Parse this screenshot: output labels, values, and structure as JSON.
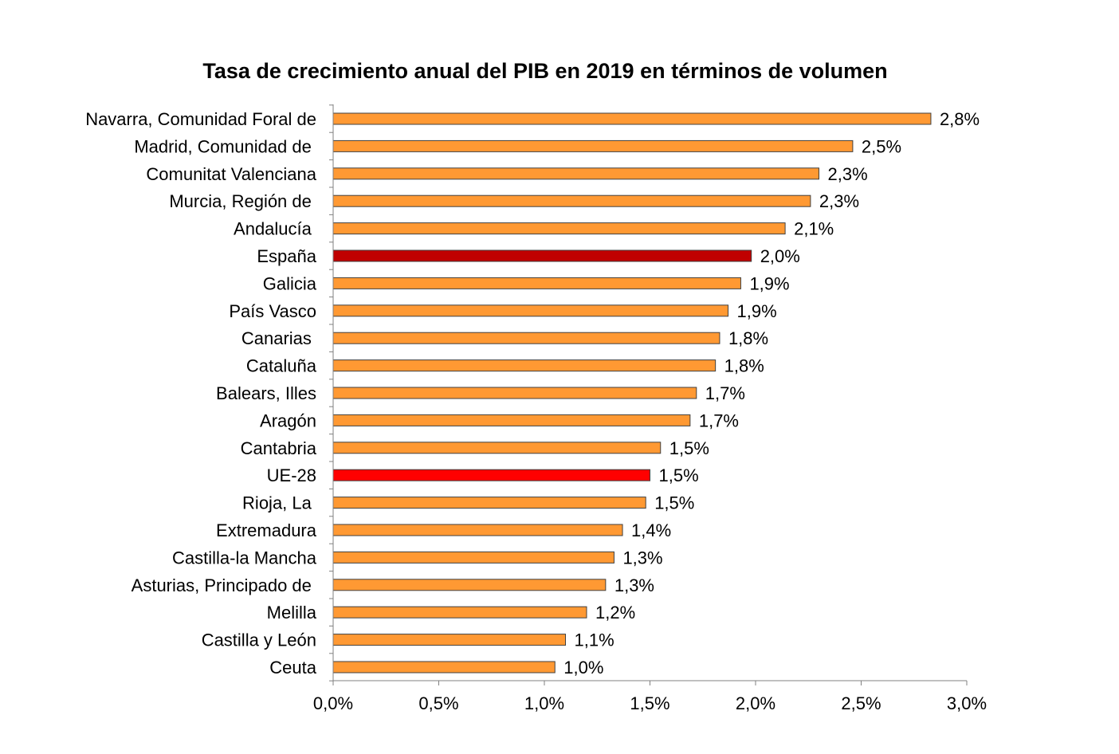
{
  "chart_data": {
    "type": "bar",
    "orientation": "horizontal",
    "title": "Tasa de crecimiento anual del PIB en 2019 en términos de volumen",
    "xlabel": "",
    "ylabel": "",
    "xlim": [
      0,
      3.0
    ],
    "x_ticks": [
      0,
      0.5,
      1.0,
      1.5,
      2.0,
      2.5,
      3.0
    ],
    "x_tick_labels": [
      "0,0%",
      "0,5%",
      "1,0%",
      "1,5%",
      "2,0%",
      "2,5%",
      "3,0%"
    ],
    "grid": false,
    "legend": "none",
    "categories": [
      "Navarra, Comunidad Foral de",
      "Madrid, Comunidad de ",
      "Comunitat Valenciana",
      "Murcia, Región de ",
      "Andalucía ",
      "España",
      "Galicia",
      "País Vasco",
      "Canarias ",
      "Cataluña",
      "Balears, Illes",
      "Aragón",
      "Cantabria",
      "UE-28",
      "Rioja, La ",
      "Extremadura",
      "Castilla-la Mancha",
      "Asturias, Principado de ",
      "Melilla",
      "Castilla y León",
      "Ceuta"
    ],
    "values": [
      2.83,
      2.46,
      2.3,
      2.26,
      2.14,
      1.98,
      1.93,
      1.87,
      1.83,
      1.81,
      1.72,
      1.69,
      1.55,
      1.5,
      1.48,
      1.37,
      1.33,
      1.29,
      1.2,
      1.1,
      1.05
    ],
    "data_labels": [
      "2,8%",
      "2,5%",
      "2,3%",
      "2,3%",
      "2,1%",
      "2,0%",
      "1,9%",
      "1,9%",
      "1,8%",
      "1,8%",
      "1,7%",
      "1,7%",
      "1,5%",
      "1,5%",
      "1,5%",
      "1,4%",
      "1,3%",
      "1,3%",
      "1,2%",
      "1,1%",
      "1,0%"
    ],
    "colors": {
      "default": "#FF9933",
      "highlight": {
        "España": "#C00000",
        "UE-28": "#FF0000"
      },
      "bar_outline": "#404040",
      "axis": "#808080"
    }
  }
}
